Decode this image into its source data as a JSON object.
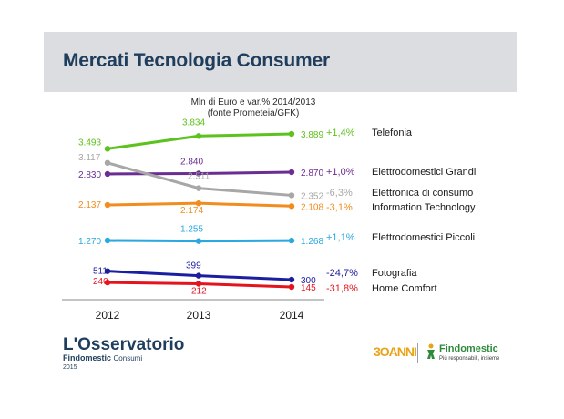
{
  "slide": {
    "title": "Mercati Tecnologia Consumer"
  },
  "chart_data": {
    "type": "line",
    "subtitle_line1": "Mln di Euro e var.% 2014/2013",
    "subtitle_line2": "(fonte Prometeia/GFK)",
    "categories": [
      "2012",
      "2013",
      "2014"
    ],
    "series": [
      {
        "name": "Telefonia",
        "values": [
          3493,
          3834,
          3889
        ],
        "labels": [
          "3.493",
          "3.834",
          "3.889"
        ],
        "change": "+1,4%",
        "color": "#5cc21e"
      },
      {
        "name": "Elettrodomestici Grandi",
        "values": [
          2830,
          2840,
          2870
        ],
        "labels": [
          "2.830",
          "2.840",
          "2.870"
        ],
        "change": "+1,0%",
        "color": "#6a2d91"
      },
      {
        "name": "Elettronica di consumo",
        "values": [
          3117,
          2511,
          2352
        ],
        "labels": [
          "3.117",
          "2.511",
          "2.352"
        ],
        "change": "-6,3%",
        "color": "#a7a7a7"
      },
      {
        "name": "Information Technology",
        "values": [
          2137,
          2174,
          2108
        ],
        "labels": [
          "2.137",
          "2.174",
          "2.108"
        ],
        "change": "-3,1%",
        "color": "#f28c1e"
      },
      {
        "name": "Elettrodomestici Piccoli",
        "values": [
          1270,
          1255,
          1268
        ],
        "labels": [
          "1.270",
          "1.255",
          "1.268"
        ],
        "change": "+1,1%",
        "color": "#2aa8df"
      },
      {
        "name": "Fotografia",
        "values": [
          511,
          399,
          300
        ],
        "labels": [
          "511",
          "399",
          "300"
        ],
        "change": "-24,7%",
        "color": "#1c1ea0"
      },
      {
        "name": "Home Comfort",
        "values": [
          240,
          212,
          145
        ],
        "labels": [
          "240",
          "212",
          "145"
        ],
        "change": "-31,8%",
        "color": "#e3141e"
      }
    ],
    "grid": false,
    "legend": "right"
  },
  "footer": {
    "brand": "L'Osservatorio",
    "brand_sub": "Findomestic",
    "brand_sub2": "Consumi",
    "year": "2015",
    "partner_logo": "3OANNI",
    "findomestic_name": "Findomestic",
    "findomestic_tagline": "Più responsabili, insieme"
  },
  "icons": {
    "findomestic": "figure-icon"
  }
}
